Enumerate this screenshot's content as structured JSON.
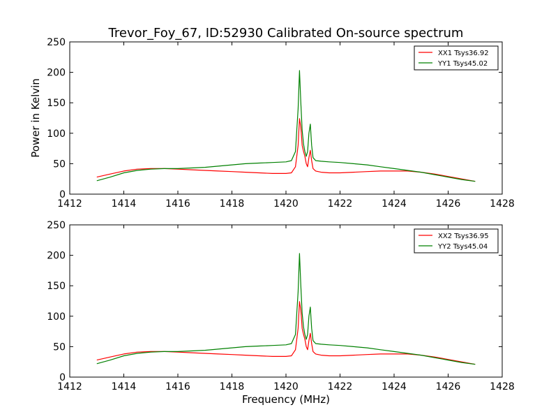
{
  "figure": {
    "title": "Trevor_Foy_67, ID:52930 Calibrated On-source spectrum",
    "ylabel": "Power in Kelvin",
    "xlabel": "Frequency (MHz)"
  },
  "chart_data": [
    {
      "type": "line",
      "xlim": [
        1412,
        1428
      ],
      "ylim": [
        0,
        250
      ],
      "xticks": [
        1412,
        1414,
        1416,
        1418,
        1420,
        1422,
        1424,
        1426,
        1428
      ],
      "yticks": [
        0,
        50,
        100,
        150,
        200,
        250
      ],
      "legend": "top-right",
      "grid": false,
      "series": [
        {
          "name": "XX1 Tsys36.92",
          "color": "#ff0000",
          "x": [
            1413.0,
            1413.5,
            1414.0,
            1414.5,
            1415.0,
            1415.5,
            1416.0,
            1416.5,
            1417.0,
            1417.5,
            1418.0,
            1418.5,
            1419.0,
            1419.5,
            1420.0,
            1420.2,
            1420.35,
            1420.45,
            1420.5,
            1420.55,
            1420.6,
            1420.65,
            1420.7,
            1420.75,
            1420.8,
            1420.85,
            1420.9,
            1420.95,
            1421.0,
            1421.1,
            1421.3,
            1421.6,
            1422.0,
            1422.5,
            1423.0,
            1423.5,
            1424.0,
            1424.5,
            1425.0,
            1425.5,
            1426.0,
            1426.5,
            1427.0
          ],
          "y": [
            28,
            33,
            38,
            41,
            42,
            42,
            41,
            40,
            39,
            38,
            37,
            36,
            35,
            34,
            34,
            35,
            45,
            80,
            124,
            110,
            80,
            70,
            62,
            50,
            45,
            60,
            72,
            55,
            42,
            38,
            36,
            35,
            35,
            36,
            37,
            38,
            38,
            38,
            36,
            33,
            29,
            25,
            21
          ]
        },
        {
          "name": "YY1 Tsys45.02",
          "color": "#008000",
          "x": [
            1413.0,
            1413.5,
            1414.0,
            1414.5,
            1415.0,
            1415.5,
            1416.0,
            1416.5,
            1417.0,
            1417.5,
            1418.0,
            1418.5,
            1419.0,
            1419.5,
            1420.0,
            1420.2,
            1420.35,
            1420.45,
            1420.5,
            1420.55,
            1420.6,
            1420.65,
            1420.7,
            1420.75,
            1420.8,
            1420.85,
            1420.9,
            1420.95,
            1421.0,
            1421.1,
            1421.3,
            1421.6,
            1422.0,
            1422.5,
            1423.0,
            1423.5,
            1424.0,
            1424.5,
            1425.0,
            1425.5,
            1426.0,
            1426.5,
            1427.0
          ],
          "y": [
            22,
            28,
            35,
            39,
            41,
            42,
            42,
            43,
            44,
            46,
            48,
            50,
            51,
            52,
            53,
            55,
            70,
            140,
            203,
            150,
            105,
            82,
            70,
            62,
            70,
            100,
            115,
            80,
            60,
            55,
            54,
            53,
            52,
            50,
            48,
            45,
            42,
            39,
            36,
            32,
            28,
            24,
            21
          ]
        }
      ]
    },
    {
      "type": "line",
      "xlim": [
        1412,
        1428
      ],
      "ylim": [
        0,
        250
      ],
      "xticks": [
        1412,
        1414,
        1416,
        1418,
        1420,
        1422,
        1424,
        1426,
        1428
      ],
      "yticks": [
        0,
        50,
        100,
        150,
        200,
        250
      ],
      "legend": "top-right",
      "grid": false,
      "series": [
        {
          "name": "XX2 Tsys36.95",
          "color": "#ff0000",
          "x": [
            1413.0,
            1413.5,
            1414.0,
            1414.5,
            1415.0,
            1415.5,
            1416.0,
            1416.5,
            1417.0,
            1417.5,
            1418.0,
            1418.5,
            1419.0,
            1419.5,
            1420.0,
            1420.2,
            1420.35,
            1420.45,
            1420.5,
            1420.55,
            1420.6,
            1420.65,
            1420.7,
            1420.75,
            1420.8,
            1420.85,
            1420.9,
            1420.95,
            1421.0,
            1421.1,
            1421.3,
            1421.6,
            1422.0,
            1422.5,
            1423.0,
            1423.5,
            1424.0,
            1424.5,
            1425.0,
            1425.5,
            1426.0,
            1426.5,
            1427.0
          ],
          "y": [
            28,
            33,
            38,
            41,
            42,
            42,
            41,
            40,
            39,
            38,
            37,
            36,
            35,
            34,
            34,
            35,
            45,
            80,
            124,
            110,
            80,
            70,
            62,
            50,
            45,
            60,
            72,
            55,
            42,
            38,
            36,
            35,
            35,
            36,
            37,
            38,
            38,
            38,
            36,
            33,
            29,
            25,
            21
          ]
        },
        {
          "name": "YY2 Tsys45.04",
          "color": "#008000",
          "x": [
            1413.0,
            1413.5,
            1414.0,
            1414.5,
            1415.0,
            1415.5,
            1416.0,
            1416.5,
            1417.0,
            1417.5,
            1418.0,
            1418.5,
            1419.0,
            1419.5,
            1420.0,
            1420.2,
            1420.35,
            1420.45,
            1420.5,
            1420.55,
            1420.6,
            1420.65,
            1420.7,
            1420.75,
            1420.8,
            1420.85,
            1420.9,
            1420.95,
            1421.0,
            1421.1,
            1421.3,
            1421.6,
            1422.0,
            1422.5,
            1423.0,
            1423.5,
            1424.0,
            1424.5,
            1425.0,
            1425.5,
            1426.0,
            1426.5,
            1427.0
          ],
          "y": [
            22,
            28,
            35,
            39,
            41,
            42,
            42,
            43,
            44,
            46,
            48,
            50,
            51,
            52,
            53,
            55,
            70,
            140,
            203,
            150,
            105,
            82,
            70,
            62,
            70,
            100,
            115,
            80,
            60,
            55,
            54,
            53,
            52,
            50,
            48,
            45,
            42,
            39,
            36,
            32,
            28,
            24,
            21
          ]
        }
      ]
    }
  ]
}
